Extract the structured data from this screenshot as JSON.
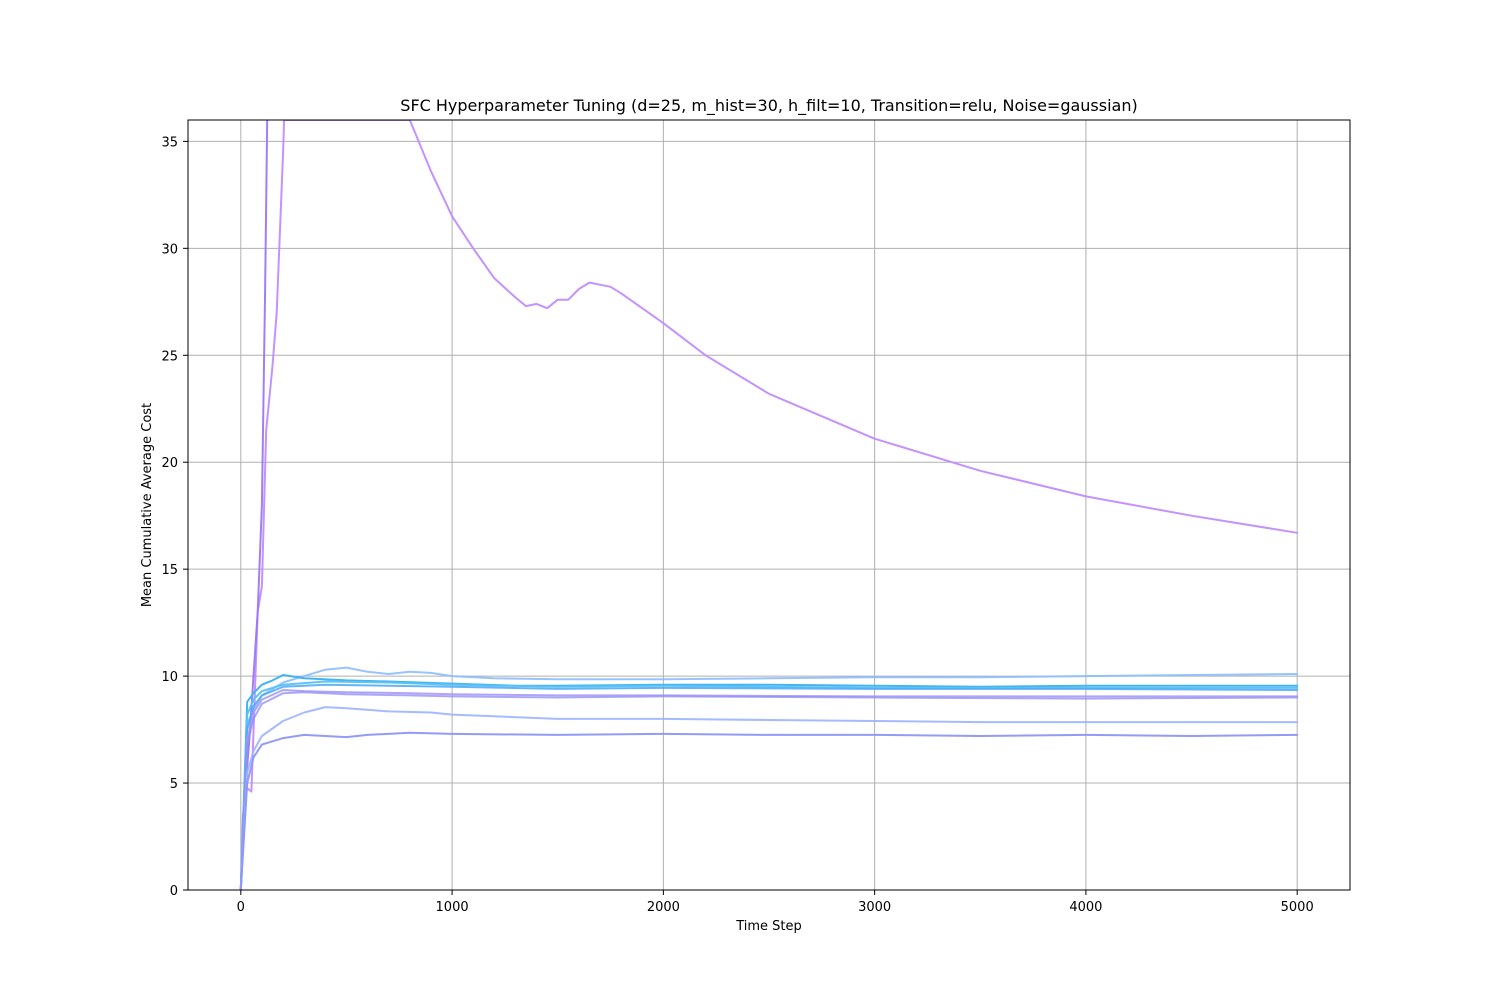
{
  "chart_data": {
    "type": "line",
    "title": "SFC Hyperparameter Tuning (d=25, m_hist=30, h_filt=10, Transition=relu, Noise=gaussian)",
    "xlabel": "Time Step",
    "ylabel": "Mean Cumulative Average Cost",
    "xlim": [
      -250,
      5250
    ],
    "ylim": [
      0,
      36
    ],
    "xticks": [
      0,
      1000,
      2000,
      3000,
      4000,
      5000
    ],
    "yticks": [
      0,
      5,
      10,
      15,
      20,
      25,
      30,
      35
    ],
    "grid": true,
    "legend": "none",
    "series": [
      {
        "color": "#c08cff",
        "opacity": 0.95,
        "x": [
          0,
          10,
          25,
          50,
          80,
          100,
          120,
          150,
          170,
          200,
          205,
          800,
          900,
          1000,
          1100,
          1200,
          1300,
          1350,
          1400,
          1450,
          1500,
          1550,
          1600,
          1650,
          1700,
          1750,
          1800,
          1900,
          2000,
          2200,
          2500,
          3000,
          3500,
          4000,
          4500,
          5000
        ],
        "y": [
          0,
          3.5,
          4.8,
          4.6,
          13,
          14.2,
          21.5,
          24.5,
          27,
          34.5,
          36,
          36,
          33.6,
          31.5,
          30,
          28.6,
          27.7,
          27.3,
          27.4,
          27.2,
          27.6,
          27.6,
          28.1,
          28.4,
          28.3,
          28.2,
          27.9,
          27.2,
          26.5,
          25,
          23.2,
          21.1,
          19.6,
          18.4,
          17.5,
          16.7
        ]
      },
      {
        "color": "#9a78f5",
        "opacity": 0.95,
        "x": [
          0,
          20,
          40,
          60,
          80,
          100,
          115,
          125
        ],
        "y": [
          0,
          4.5,
          7,
          10,
          13,
          18,
          28,
          36
        ]
      },
      {
        "color": "#8cbcff",
        "opacity": 0.9,
        "x": [
          0,
          30,
          60,
          100,
          200,
          300,
          400,
          500,
          600,
          700,
          800,
          900,
          1000,
          1200,
          1500,
          2000,
          2500,
          3000,
          3500,
          4000,
          4500,
          5000
        ],
        "y": [
          0,
          7.8,
          8.4,
          9.1,
          9.7,
          10.0,
          10.3,
          10.4,
          10.2,
          10.1,
          10.2,
          10.15,
          10.0,
          9.9,
          9.85,
          9.85,
          9.9,
          9.95,
          9.95,
          10.0,
          10.05,
          10.1
        ]
      },
      {
        "color": "#42b4f2",
        "opacity": 1.0,
        "x": [
          0,
          30,
          60,
          100,
          150,
          200,
          300,
          500,
          700,
          1000,
          1300,
          1500,
          2000,
          2500,
          3000,
          3500,
          4000,
          4500,
          5000
        ],
        "y": [
          0,
          8.8,
          9.2,
          9.6,
          9.8,
          10.05,
          9.9,
          9.8,
          9.75,
          9.65,
          9.55,
          9.55,
          9.6,
          9.6,
          9.55,
          9.5,
          9.55,
          9.55,
          9.55
        ]
      },
      {
        "color": "#56c2f5",
        "opacity": 0.95,
        "x": [
          0,
          30,
          60,
          100,
          200,
          400,
          700,
          1000,
          1500,
          2000,
          3000,
          4000,
          5000
        ],
        "y": [
          0,
          8.2,
          8.9,
          9.3,
          9.6,
          9.75,
          9.7,
          9.6,
          9.5,
          9.55,
          9.45,
          9.45,
          9.45
        ]
      },
      {
        "color": "#4aa8f5",
        "opacity": 0.85,
        "x": [
          0,
          30,
          60,
          100,
          200,
          400,
          700,
          1000,
          1500,
          2000,
          3000,
          4000,
          5000
        ],
        "y": [
          0,
          7.5,
          8.6,
          9.1,
          9.5,
          9.6,
          9.55,
          9.5,
          9.4,
          9.45,
          9.4,
          9.4,
          9.35
        ]
      },
      {
        "color": "#a89af7",
        "opacity": 0.9,
        "x": [
          0,
          30,
          60,
          100,
          200,
          300,
          500,
          800,
          1000,
          1500,
          2000,
          3000,
          4000,
          5000
        ],
        "y": [
          0,
          7.0,
          8.3,
          8.9,
          9.35,
          9.3,
          9.25,
          9.2,
          9.15,
          9.1,
          9.1,
          9.05,
          9.05,
          9.05
        ]
      },
      {
        "color": "#8c8cf5",
        "opacity": 0.75,
        "x": [
          0,
          30,
          60,
          100,
          200,
          300,
          500,
          800,
          1000,
          1500,
          2000,
          3000,
          4000,
          5000
        ],
        "y": [
          0,
          6.8,
          8.0,
          8.7,
          9.2,
          9.25,
          9.15,
          9.1,
          9.05,
          9.0,
          9.05,
          9.0,
          8.95,
          9.0
        ]
      },
      {
        "color": "#9cb4ff",
        "opacity": 0.9,
        "x": [
          0,
          30,
          60,
          100,
          200,
          300,
          400,
          500,
          700,
          900,
          1000,
          1500,
          2000,
          2500,
          3000,
          3500,
          4000,
          4500,
          5000
        ],
        "y": [
          0,
          5.5,
          6.5,
          7.2,
          7.9,
          8.3,
          8.55,
          8.5,
          8.35,
          8.3,
          8.2,
          8.0,
          8.0,
          7.95,
          7.9,
          7.85,
          7.85,
          7.85,
          7.85
        ]
      },
      {
        "color": "#8c96f5",
        "opacity": 0.95,
        "x": [
          0,
          30,
          60,
          100,
          200,
          300,
          400,
          500,
          600,
          800,
          1000,
          1500,
          2000,
          2500,
          3000,
          3500,
          4000,
          4500,
          5000
        ],
        "y": [
          0,
          5.0,
          6.2,
          6.8,
          7.1,
          7.25,
          7.2,
          7.15,
          7.25,
          7.35,
          7.3,
          7.25,
          7.3,
          7.25,
          7.25,
          7.2,
          7.25,
          7.2,
          7.25
        ]
      }
    ]
  }
}
